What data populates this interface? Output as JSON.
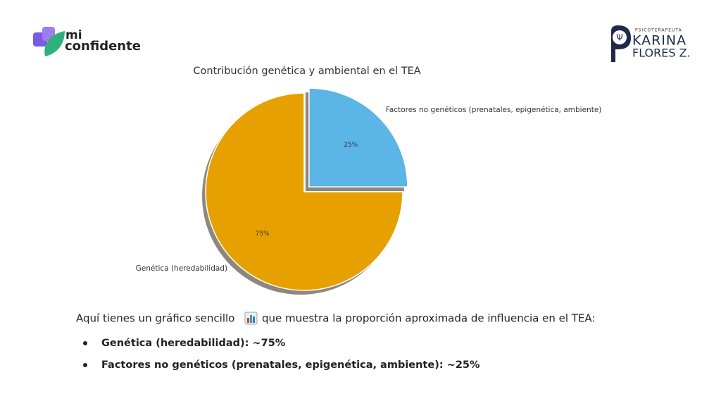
{
  "header": {
    "left_logo": {
      "top": "mi",
      "bottom": "confidente"
    },
    "right_logo": {
      "tagline": "PSICOTERAPEUTA",
      "name": "KARINA",
      "surname": "FLORES Z."
    }
  },
  "chart_data": {
    "type": "pie",
    "title": "Contribución genética y ambiental en el TEA",
    "categories": [
      "Genética (heredabilidad)",
      "Factores no genéticos (prenatales, epigenética, ambiente)"
    ],
    "values": [
      75,
      25
    ],
    "value_labels": [
      "75%",
      "25%"
    ],
    "colors": [
      "#e6a100",
      "#5bb5e6"
    ],
    "startangle": 90,
    "explode": [
      0,
      0.07
    ],
    "shadow": true
  },
  "body": {
    "intro_before": "Aquí tienes un gráfico sencillo",
    "intro_after": "que muestra la proporción aproximada de influencia en el TEA:",
    "bullets": [
      "Genética (heredabilidad): ~75%",
      "Factores no genéticos (prenatales, epigenética, ambiente): ~25%"
    ]
  }
}
